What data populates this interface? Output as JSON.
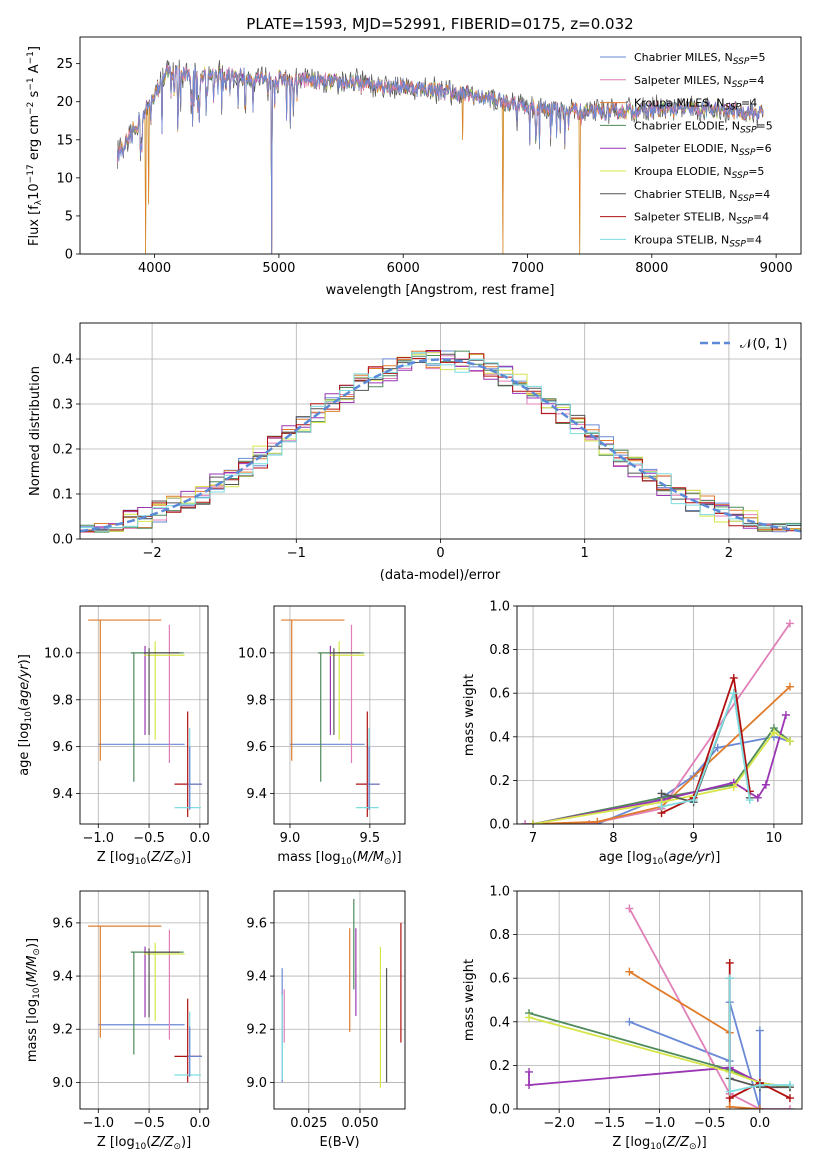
{
  "figure_title": "PLATE=1593, MJD=52991, FIBERID=0175, z=0.032",
  "colors": {
    "chabrier_miles": "#6a89d6",
    "salpeter_miles": "#e07fb8",
    "kroupa_miles": "#e07b2a",
    "chabrier_elodie": "#4e8a5a",
    "salpeter_elodie": "#9a36b4",
    "kroupa_elodie": "#d6e64a",
    "chabrier_stelib": "#555555",
    "salpeter_stelib": "#b01010",
    "kroupa_stelib": "#7ddde0",
    "normal": "#5b8ad6"
  },
  "chart_data": [
    {
      "id": "spectrum",
      "type": "line",
      "xlabel": "wavelength [Angstrom, rest frame]",
      "ylabel": "Flux [f_λ10^-17 erg cm^-2 s^-1 A^-1]",
      "xlim": [
        3400,
        9200
      ],
      "ylim": [
        0,
        28.5
      ],
      "xticks": [
        "4000",
        "5000",
        "6000",
        "7000",
        "8000",
        "9000"
      ],
      "yticks": [
        "0",
        "5",
        "10",
        "15",
        "20",
        "25"
      ],
      "legend_position": "top-right",
      "legend": [
        {
          "model": "Chabrier MILES",
          "nssp": "5"
        },
        {
          "model": "Salpeter MILES",
          "nssp": "4"
        },
        {
          "model": "Kroupa MILES",
          "nssp": "4"
        },
        {
          "model": "Chabrier ELODIE",
          "nssp": "5"
        },
        {
          "model": "Salpeter ELODIE",
          "nssp": "6"
        },
        {
          "model": "Kroupa ELODIE",
          "nssp": "5"
        },
        {
          "model": "Chabrier STELIB",
          "nssp": "4"
        },
        {
          "model": "Salpeter STELIB",
          "nssp": "4"
        },
        {
          "model": "Kroupa STELIB",
          "nssp": "4"
        }
      ],
      "continuum": {
        "x": [
          3700,
          3900,
          4000,
          4100,
          4300,
          4600,
          5000,
          5500,
          6000,
          6500,
          6800,
          7000,
          7300,
          7500,
          8000,
          8500,
          8900
        ],
        "y": [
          13,
          18,
          21,
          24,
          23.5,
          23.5,
          23,
          22.5,
          22,
          21,
          20,
          19.5,
          19,
          18.5,
          19,
          19,
          18.5
        ]
      },
      "drops": [
        {
          "x": 3930,
          "y": 0
        },
        {
          "x": 4940,
          "y": 0
        },
        {
          "x": 6800,
          "y": 0
        },
        {
          "x": 7420,
          "y": 0
        },
        {
          "x": 6480,
          "y": 15
        },
        {
          "x": 3950,
          "y": 6.5
        }
      ]
    },
    {
      "id": "residuals",
      "type": "histogram",
      "xlabel": "(data-model)/error",
      "ylabel": "Normed distribution",
      "xlim": [
        -2.5,
        2.5
      ],
      "ylim": [
        0,
        0.48
      ],
      "xticks": [
        "−2",
        "−1",
        "0",
        "1",
        "2"
      ],
      "yticks": [
        "0.0",
        "0.1",
        "0.2",
        "0.3",
        "0.4"
      ],
      "grid": true,
      "legend_position": "top-right",
      "normal_curve_label": "𝒩(0, 1)",
      "bins": {
        "start": -2.5,
        "width": 0.1,
        "count": 50
      }
    },
    {
      "id": "age_vs_Z",
      "type": "errorbar",
      "xlabel": "Z [log10(Z/Z⊙)]",
      "ylabel": "age [log10(age/yr)]",
      "xlim": [
        -1.18,
        0.08
      ],
      "ylim": [
        9.27,
        10.2
      ],
      "xticks": [
        "−1.0",
        "−0.5",
        "0.0"
      ],
      "yticks": [
        "9.4",
        "9.6",
        "9.8",
        "10.0"
      ],
      "grid": true,
      "points": [
        {
          "x": -0.68,
          "y": 9.61,
          "xlo": -1.0,
          "xhi": -0.15,
          "ylo": 9.61,
          "yhi": 9.61
        },
        {
          "x": -0.3,
          "y": 9.61,
          "xlo": -0.3,
          "xhi": -0.3,
          "ylo": 9.53,
          "yhi": 10.12
        },
        {
          "x": -0.98,
          "y": 10.14,
          "xlo": -1.1,
          "xhi": -0.38,
          "ylo": 9.54,
          "yhi": 10.14
        },
        {
          "x": -0.65,
          "y": 10.0,
          "xlo": -0.68,
          "xhi": -0.16,
          "ylo": 9.45,
          "yhi": 10.0
        },
        {
          "x": -0.54,
          "y": 10.0,
          "xlo": -0.54,
          "xhi": -0.54,
          "ylo": 9.65,
          "yhi": 10.03
        },
        {
          "x": -0.44,
          "y": 9.99,
          "xlo": -0.55,
          "xhi": -0.15,
          "ylo": 9.63,
          "yhi": 10.05
        },
        {
          "x": -0.5,
          "y": 10.0,
          "xlo": -0.55,
          "xhi": -0.2,
          "ylo": 9.65,
          "yhi": 10.02
        },
        {
          "x": -0.12,
          "y": 9.44,
          "xlo": -0.25,
          "xhi": 0.02,
          "ylo": 9.3,
          "yhi": 9.75
        },
        {
          "x": -0.1,
          "y": 9.34,
          "xlo": -0.25,
          "xhi": 0.01,
          "ylo": 9.34,
          "yhi": 9.68
        },
        {
          "x": -0.1,
          "y": 9.44,
          "xlo": -0.12,
          "xhi": 0.02,
          "ylo": 9.33,
          "yhi": 9.6
        }
      ]
    },
    {
      "id": "age_vs_mass",
      "type": "errorbar",
      "xlabel": "mass [log10(M/M⊙)]",
      "ylabel": "",
      "xlim": [
        8.9,
        9.72
      ],
      "ylim": [
        9.27,
        10.2
      ],
      "xticks": [
        "9.0",
        "9.5"
      ],
      "yticks": [
        "9.4",
        "9.6",
        "9.8",
        "10.0"
      ],
      "grid": true
    },
    {
      "id": "mass_weight_vs_age",
      "type": "line",
      "xlabel": "age [log10(age/yr)]",
      "ylabel": "mass weight",
      "xlim": [
        6.8,
        10.35
      ],
      "ylim": [
        0,
        1.0
      ],
      "xticks": [
        "7",
        "8",
        "9",
        "10"
      ],
      "yticks": [
        "0.0",
        "0.2",
        "0.4",
        "0.6",
        "0.8",
        "1.0"
      ],
      "grid": true,
      "series": [
        {
          "color": "chabrier_miles",
          "x": [
            6.9,
            7.8,
            8.6,
            9.0,
            9.3,
            10.0,
            10.2
          ],
          "y": [
            0.0,
            0.0,
            0.12,
            0.22,
            0.35,
            0.4,
            0.38
          ]
        },
        {
          "color": "salpeter_miles",
          "x": [
            6.9,
            7.7,
            8.6,
            10.2
          ],
          "y": [
            0.0,
            0.0,
            0.07,
            0.92
          ]
        },
        {
          "color": "kroupa_miles",
          "x": [
            7.0,
            7.8,
            8.6,
            10.2
          ],
          "y": [
            0.0,
            0.01,
            0.08,
            0.63
          ]
        },
        {
          "color": "chabrier_elodie",
          "x": [
            7.0,
            8.6,
            9.5,
            10.0,
            10.2
          ],
          "y": [
            0.0,
            0.12,
            0.18,
            0.44,
            0.38
          ]
        },
        {
          "color": "salpeter_elodie",
          "x": [
            7.0,
            8.6,
            9.5,
            9.8,
            9.9,
            10.15
          ],
          "y": [
            0.0,
            0.11,
            0.19,
            0.12,
            0.18,
            0.5
          ]
        },
        {
          "color": "kroupa_elodie",
          "x": [
            7.0,
            8.6,
            9.5,
            10.0,
            10.2
          ],
          "y": [
            0.0,
            0.1,
            0.17,
            0.42,
            0.38
          ]
        },
        {
          "color": "chabrier_stelib",
          "x": [
            8.6,
            9.0,
            9.5,
            9.7
          ],
          "y": [
            0.14,
            0.1,
            0.6,
            0.12
          ]
        },
        {
          "color": "salpeter_stelib",
          "x": [
            8.6,
            9.0,
            9.5,
            9.7
          ],
          "y": [
            0.05,
            0.12,
            0.67,
            0.15
          ]
        },
        {
          "color": "kroupa_stelib",
          "x": [
            8.6,
            9.0,
            9.5,
            9.7
          ],
          "y": [
            0.08,
            0.11,
            0.6,
            0.11
          ]
        }
      ]
    },
    {
      "id": "mass_vs_Z",
      "type": "errorbar",
      "xlabel": "Z [log10(Z/Z⊙)]",
      "ylabel": "mass [log10(M/M⊙)]",
      "xlim": [
        -1.18,
        0.08
      ],
      "ylim": [
        8.9,
        9.72
      ],
      "xticks": [
        "−1.0",
        "−0.5",
        "0.0"
      ],
      "yticks": [
        "9.0",
        "9.2",
        "9.4",
        "9.6"
      ],
      "grid": true
    },
    {
      "id": "mass_vs_ebv",
      "type": "errorbar",
      "xlabel": "E(B-V)",
      "ylabel": "",
      "xlim": [
        0.008,
        0.072
      ],
      "ylim": [
        8.9,
        9.72
      ],
      "xticks": [
        "0.025",
        "0.050"
      ],
      "yticks": [
        "9.0",
        "9.2",
        "9.4",
        "9.6"
      ],
      "grid": true
    },
    {
      "id": "mass_weight_vs_Z",
      "type": "line",
      "xlabel": "Z [log10(Z/Z⊙)]",
      "ylabel": "mass weight",
      "xlim": [
        -2.42,
        0.42
      ],
      "ylim": [
        0,
        1.0
      ],
      "xticks": [
        "−2.0",
        "−1.5",
        "−1.0",
        "−0.5",
        "0.0"
      ],
      "yticks": [
        "0.0",
        "0.2",
        "0.4",
        "0.6",
        "0.8",
        "1.0"
      ],
      "grid": true,
      "series": [
        {
          "color": "chabrier_miles",
          "x": [
            -1.3,
            -0.3,
            -0.3,
            0.0,
            0.0
          ],
          "y": [
            0.4,
            0.22,
            0.49,
            0.0,
            0.36
          ]
        },
        {
          "color": "salpeter_miles",
          "x": [
            -1.3,
            -0.3,
            0.0,
            0.3
          ],
          "y": [
            0.92,
            0.07,
            0.0,
            0.0
          ]
        },
        {
          "color": "kroupa_miles",
          "x": [
            -1.3,
            -0.3,
            -0.3,
            0.0
          ],
          "y": [
            0.63,
            0.35,
            0.01,
            0.0
          ]
        },
        {
          "color": "chabrier_elodie",
          "x": [
            -2.3,
            -0.3,
            0.0,
            0.3
          ],
          "y": [
            0.44,
            0.18,
            0.12,
            0.1
          ]
        },
        {
          "color": "salpeter_elodie",
          "x": [
            -2.3,
            -2.3,
            -0.3,
            0.0,
            0.3
          ],
          "y": [
            0.17,
            0.11,
            0.19,
            0.12,
            0.1
          ]
        },
        {
          "color": "kroupa_elodie",
          "x": [
            -2.3,
            -0.3,
            0.0,
            0.3
          ],
          "y": [
            0.42,
            0.17,
            0.12,
            0.1
          ]
        },
        {
          "color": "chabrier_stelib",
          "x": [
            -0.3,
            -0.3,
            0.0,
            0.3
          ],
          "y": [
            0.6,
            0.14,
            0.1,
            0.1
          ]
        },
        {
          "color": "salpeter_stelib",
          "x": [
            -0.3,
            -0.3,
            0.0,
            0.3
          ],
          "y": [
            0.67,
            0.05,
            0.12,
            0.05
          ]
        },
        {
          "color": "kroupa_stelib",
          "x": [
            -0.3,
            -0.3,
            0.0,
            0.3
          ],
          "y": [
            0.6,
            0.08,
            0.11,
            0.11
          ]
        }
      ]
    }
  ]
}
